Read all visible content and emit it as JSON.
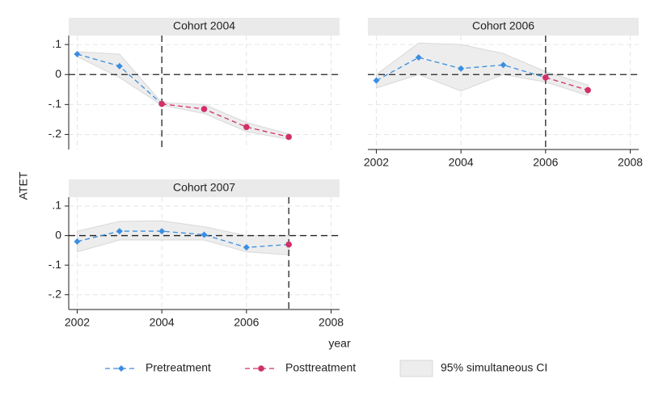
{
  "y_label": "ATET",
  "x_label": "year",
  "chart_data": [
    {
      "type": "line",
      "title": "Cohort 2004",
      "x": [
        2002,
        2003,
        2004,
        2005,
        2006,
        2007
      ],
      "series": [
        {
          "name": "Pretreatment",
          "color": "#3b8ee0",
          "marker": "diamond",
          "values": [
            0.068,
            0.028,
            -0.098,
            null,
            null,
            null
          ]
        },
        {
          "name": "Posttreatment",
          "color": "#d1306a",
          "marker": "circle",
          "values": [
            null,
            null,
            -0.098,
            -0.115,
            -0.175,
            -0.208
          ]
        }
      ],
      "ci": {
        "name": "95% simultaneous CI",
        "color": "#ededed",
        "upper": [
          0.076,
          0.068,
          -0.094,
          -0.1,
          -0.16,
          -0.198
        ],
        "lower": [
          0.06,
          -0.01,
          -0.102,
          -0.13,
          -0.19,
          -0.216
        ]
      },
      "treatment_line": 2004,
      "zero_line": 0,
      "xlim": [
        2001.8,
        2008.2
      ],
      "ylim": [
        -0.25,
        0.13
      ],
      "xticks": [
        2002,
        2004,
        2006,
        2008
      ],
      "yticks": [
        {
          "value": 0.1,
          "label": ".1"
        },
        0,
        {
          "value": -0.1,
          "label": "-.1"
        },
        {
          "value": -0.2,
          "label": "-.2"
        }
      ],
      "xtick_labels": false,
      "ytick_labels": true,
      "grid": true
    },
    {
      "type": "line",
      "title": "Cohort 2006",
      "x": [
        2002,
        2003,
        2004,
        2005,
        2006,
        2007
      ],
      "series": [
        {
          "name": "Pretreatment",
          "color": "#3b8ee0",
          "marker": "diamond",
          "values": [
            -0.02,
            0.057,
            0.02,
            0.032,
            -0.01,
            null
          ]
        },
        {
          "name": "Posttreatment",
          "color": "#d1306a",
          "marker": "circle",
          "values": [
            null,
            null,
            null,
            null,
            -0.01,
            -0.052
          ]
        }
      ],
      "ci": {
        "name": "95% simultaneous CI",
        "color": "#ededed",
        "upper": [
          0.0,
          0.105,
          0.1,
          0.07,
          0.01,
          -0.035
        ],
        "lower": [
          -0.045,
          0.0,
          -0.055,
          0.0,
          -0.025,
          -0.07
        ]
      },
      "treatment_line": 2006,
      "zero_line": 0,
      "xlim": [
        2001.8,
        2008.2
      ],
      "ylim": [
        -0.25,
        0.13
      ],
      "xticks": [
        2002,
        2004,
        2006,
        2008
      ],
      "yticks": [
        {
          "value": 0.1,
          "label": ".1"
        },
        0,
        {
          "value": -0.1,
          "label": "-.1"
        },
        {
          "value": -0.2,
          "label": "-.2"
        }
      ],
      "xtick_labels": true,
      "ytick_labels": false,
      "grid": true
    },
    {
      "type": "line",
      "title": "Cohort 2007",
      "x": [
        2002,
        2003,
        2004,
        2005,
        2006,
        2007
      ],
      "series": [
        {
          "name": "Pretreatment",
          "color": "#3b8ee0",
          "marker": "diamond",
          "values": [
            -0.02,
            0.015,
            0.015,
            0.003,
            -0.04,
            -0.03
          ]
        },
        {
          "name": "Posttreatment",
          "color": "#d1306a",
          "marker": "circle",
          "values": [
            null,
            null,
            null,
            null,
            null,
            -0.03
          ]
        }
      ],
      "ci": {
        "name": "95% simultaneous CI",
        "color": "#ededed",
        "upper": [
          0.015,
          0.048,
          0.05,
          0.03,
          0.0,
          0.0
        ],
        "lower": [
          -0.055,
          -0.015,
          -0.015,
          -0.015,
          -0.055,
          -0.065
        ]
      },
      "treatment_line": 2007,
      "zero_line": 0,
      "xlim": [
        2001.8,
        2008.2
      ],
      "ylim": [
        -0.25,
        0.13
      ],
      "xticks": [
        2002,
        2004,
        2006,
        2008
      ],
      "yticks": [
        {
          "value": 0.1,
          "label": ".1"
        },
        0,
        {
          "value": -0.1,
          "label": "-.1"
        },
        {
          "value": -0.2,
          "label": "-.2"
        }
      ],
      "xtick_labels": true,
      "ytick_labels": true,
      "grid": true
    }
  ]
}
